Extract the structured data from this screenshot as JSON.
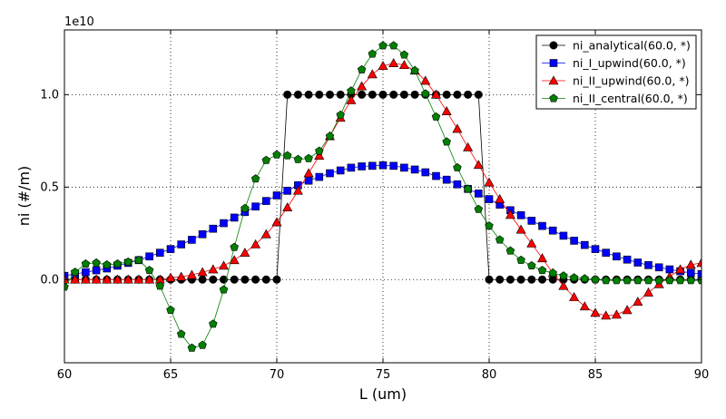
{
  "chart_data": {
    "type": "line",
    "xlabel": "L (um)",
    "ylabel": "ni (#/m)",
    "y_offset_label": "1e10",
    "xlim": [
      60,
      90
    ],
    "ylim": [
      -0.45,
      1.35
    ],
    "x_ticks": [
      60,
      65,
      70,
      75,
      80,
      85,
      90
    ],
    "y_ticks": [
      0.0,
      0.5,
      1.0
    ],
    "x_tick_labels": [
      "60",
      "65",
      "70",
      "75",
      "80",
      "85",
      "90"
    ],
    "y_tick_labels": [
      "0.0",
      "0.5",
      "1.0"
    ],
    "grid": true,
    "legend_position": "top-right",
    "series": [
      {
        "name": "ni_analytical(60.0, *)",
        "color": "#000000",
        "marker": "circle",
        "x": [
          60.0,
          60.5,
          61.0,
          61.5,
          62.0,
          62.5,
          63.0,
          63.5,
          64.0,
          64.5,
          65.0,
          65.5,
          66.0,
          66.5,
          67.0,
          67.5,
          68.0,
          68.5,
          69.0,
          69.5,
          70.0,
          70.5,
          71.0,
          71.5,
          72.0,
          72.5,
          73.0,
          73.5,
          74.0,
          74.5,
          75.0,
          75.5,
          76.0,
          76.5,
          77.0,
          77.5,
          78.0,
          78.5,
          79.0,
          79.5,
          80.0,
          80.5,
          81.0,
          81.5,
          82.0,
          82.5,
          83.0,
          83.5,
          84.0,
          84.5,
          85.0,
          85.5,
          86.0,
          86.5,
          87.0,
          87.5,
          88.0,
          88.5,
          89.0,
          89.5,
          90.0
        ],
        "values": [
          0,
          0,
          0,
          0,
          0,
          0,
          0,
          0,
          0,
          0,
          0,
          0,
          0,
          0,
          0,
          0,
          0,
          0,
          0,
          0,
          0,
          1,
          1,
          1,
          1,
          1,
          1,
          1,
          1,
          1,
          1,
          1,
          1,
          1,
          1,
          1,
          1,
          1,
          1,
          1,
          0,
          0,
          0,
          0,
          0,
          0,
          0,
          0,
          0,
          0,
          0,
          0,
          0,
          0,
          0,
          0,
          0,
          0,
          0,
          0,
          0
        ]
      },
      {
        "name": "ni_I_upwind(60.0, *)",
        "color": "#0000ff",
        "marker": "square",
        "x": [
          60.0,
          60.5,
          61.0,
          61.5,
          62.0,
          62.5,
          63.0,
          63.5,
          64.0,
          64.5,
          65.0,
          65.5,
          66.0,
          66.5,
          67.0,
          67.5,
          68.0,
          68.5,
          69.0,
          69.5,
          70.0,
          70.5,
          71.0,
          71.5,
          72.0,
          72.5,
          73.0,
          73.5,
          74.0,
          74.5,
          75.0,
          75.5,
          76.0,
          76.5,
          77.0,
          77.5,
          78.0,
          78.5,
          79.0,
          79.5,
          80.0,
          80.5,
          81.0,
          81.5,
          82.0,
          82.5,
          83.0,
          83.5,
          84.0,
          84.5,
          85.0,
          85.5,
          86.0,
          86.5,
          87.0,
          87.5,
          88.0,
          88.5,
          89.0,
          89.5,
          90.0
        ],
        "values": [
          0.02,
          0.03,
          0.04,
          0.05,
          0.06,
          0.075,
          0.09,
          0.105,
          0.125,
          0.145,
          0.165,
          0.19,
          0.215,
          0.245,
          0.275,
          0.305,
          0.335,
          0.365,
          0.395,
          0.425,
          0.455,
          0.48,
          0.51,
          0.535,
          0.555,
          0.575,
          0.59,
          0.605,
          0.612,
          0.615,
          0.618,
          0.615,
          0.605,
          0.595,
          0.58,
          0.56,
          0.54,
          0.515,
          0.49,
          0.465,
          0.435,
          0.405,
          0.375,
          0.348,
          0.318,
          0.29,
          0.265,
          0.237,
          0.21,
          0.187,
          0.165,
          0.145,
          0.125,
          0.108,
          0.092,
          0.078,
          0.066,
          0.055,
          0.045,
          0.036,
          0.03
        ]
      },
      {
        "name": "ni_II_upwind(60.0, *)",
        "color": "#ff0000",
        "marker": "triangle",
        "x": [
          60.0,
          60.5,
          61.0,
          61.5,
          62.0,
          62.5,
          63.0,
          63.5,
          64.0,
          64.5,
          65.0,
          65.5,
          66.0,
          66.5,
          67.0,
          67.5,
          68.0,
          68.5,
          69.0,
          69.5,
          70.0,
          70.5,
          71.0,
          71.5,
          72.0,
          72.5,
          73.0,
          73.5,
          74.0,
          74.5,
          75.0,
          75.5,
          76.0,
          76.5,
          77.0,
          77.5,
          78.0,
          78.5,
          79.0,
          79.5,
          80.0,
          80.5,
          81.0,
          81.5,
          82.0,
          82.5,
          83.0,
          83.5,
          84.0,
          84.5,
          85.0,
          85.5,
          86.0,
          86.5,
          87.0,
          87.5,
          88.0,
          88.5,
          89.0,
          89.5,
          90.0
        ],
        "values": [
          0,
          0,
          0,
          0,
          0,
          0,
          0,
          0,
          0,
          0,
          0.01,
          0.015,
          0.025,
          0.04,
          0.055,
          0.075,
          0.105,
          0.145,
          0.19,
          0.245,
          0.31,
          0.39,
          0.48,
          0.575,
          0.67,
          0.775,
          0.875,
          0.97,
          1.045,
          1.11,
          1.155,
          1.17,
          1.16,
          1.13,
          1.075,
          1.0,
          0.91,
          0.815,
          0.715,
          0.62,
          0.525,
          0.435,
          0.35,
          0.27,
          0.195,
          0.115,
          0.035,
          -0.035,
          -0.095,
          -0.145,
          -0.18,
          -0.195,
          -0.19,
          -0.165,
          -0.12,
          -0.07,
          -0.025,
          0.015,
          0.055,
          0.08,
          0.09
        ]
      },
      {
        "name": "ni_II_central(60.0, *)",
        "color": "#008000",
        "marker": "pentagon",
        "x": [
          60.0,
          60.5,
          61.0,
          61.5,
          62.0,
          62.5,
          63.0,
          63.5,
          64.0,
          64.5,
          65.0,
          65.5,
          66.0,
          66.5,
          67.0,
          67.5,
          68.0,
          68.5,
          69.0,
          69.5,
          70.0,
          70.5,
          71.0,
          71.5,
          72.0,
          72.5,
          73.0,
          73.5,
          74.0,
          74.5,
          75.0,
          75.5,
          76.0,
          76.5,
          77.0,
          77.5,
          78.0,
          78.5,
          79.0,
          79.5,
          80.0,
          80.5,
          81.0,
          81.5,
          82.0,
          82.5,
          83.0,
          83.5,
          84.0,
          84.5,
          85.0,
          85.5,
          86.0,
          86.5,
          87.0,
          87.5,
          88.0,
          88.5,
          89.0,
          89.5,
          90.0
        ],
        "values": [
          -0.04,
          0.04,
          0.085,
          0.09,
          0.08,
          0.085,
          0.095,
          0.105,
          0.05,
          -0.035,
          -0.165,
          -0.295,
          -0.37,
          -0.355,
          -0.24,
          -0.055,
          0.175,
          0.385,
          0.545,
          0.645,
          0.675,
          0.67,
          0.65,
          0.655,
          0.695,
          0.775,
          0.89,
          1.02,
          1.135,
          1.22,
          1.265,
          1.265,
          1.215,
          1.13,
          1.005,
          0.88,
          0.745,
          0.605,
          0.49,
          0.38,
          0.29,
          0.215,
          0.155,
          0.105,
          0.075,
          0.05,
          0.035,
          0.02,
          0.01,
          0.005,
          0.0,
          -0.005,
          -0.005,
          -0.005,
          -0.005,
          -0.005,
          -0.005,
          -0.005,
          -0.005,
          -0.005,
          -0.005
        ]
      }
    ]
  }
}
